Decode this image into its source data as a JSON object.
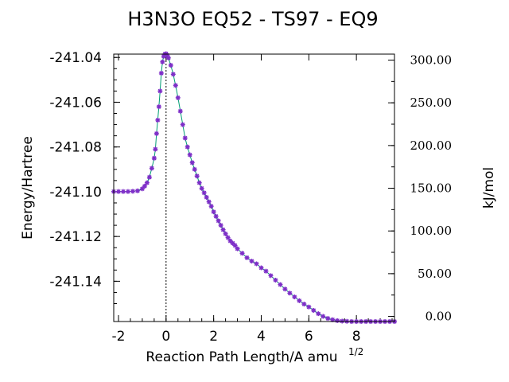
{
  "chart_data": {
    "type": "line",
    "title": "H3N3O   EQ52 - TS97 - EQ9",
    "xlabel": "Reaction Path Length/A amu",
    "xlabel_superscript": "1/2",
    "ylabel_left": "Energy/Hartree",
    "ylabel_right": "kJ/mol",
    "xlim": [
      -2.2,
      9.6
    ],
    "ylim": [
      -241.158,
      -241.0385
    ],
    "right_ylim": [
      -6.0,
      307.0
    ],
    "x_ticks": [
      -2,
      0,
      2,
      4,
      6,
      8
    ],
    "x_tick_labels": [
      "-2",
      "0",
      "2",
      "4",
      "6",
      "8"
    ],
    "y_ticks": [
      -241.04,
      -241.06,
      -241.08,
      -241.1,
      -241.12,
      -241.14
    ],
    "y_tick_labels": [
      "-241.04",
      "-241.06",
      "-241.08",
      "-241.10",
      "-241.12",
      "-241.14"
    ],
    "right_ticks": [
      300,
      250,
      200,
      150,
      100,
      50,
      0
    ],
    "right_tick_labels": [
      "300.00",
      "250.00",
      "200.00",
      "150.00",
      "100.00",
      "50.00",
      "0.00"
    ],
    "ts_marker_x": 0,
    "colors": {
      "curve": "#009e73",
      "points": "#7e2fc8",
      "frame": "#000000",
      "marker": "#000000"
    },
    "series": [
      {
        "points": [
          [
            -2.2,
            -241.0999
          ],
          [
            -2.0,
            -241.0999
          ],
          [
            -1.8,
            -241.0999
          ],
          [
            -1.6,
            -241.0999
          ],
          [
            -1.4,
            -241.0998
          ],
          [
            -1.2,
            -241.0996
          ],
          [
            -1.0,
            -241.0987
          ],
          [
            -0.9,
            -241.0975
          ],
          [
            -0.8,
            -241.096
          ],
          [
            -0.7,
            -241.0935
          ],
          [
            -0.6,
            -241.0895
          ],
          [
            -0.5,
            -241.085
          ],
          [
            -0.45,
            -241.081
          ],
          [
            -0.4,
            -241.074
          ],
          [
            -0.35,
            -241.068
          ],
          [
            -0.3,
            -241.062
          ],
          [
            -0.25,
            -241.055
          ],
          [
            -0.2,
            -241.047
          ],
          [
            -0.15,
            -241.042
          ],
          [
            -0.1,
            -241.0395
          ],
          [
            -0.05,
            -241.0385
          ],
          [
            0.0,
            -241.0383
          ],
          [
            0.05,
            -241.039
          ],
          [
            0.1,
            -241.0402
          ],
          [
            0.2,
            -241.0435
          ],
          [
            0.3,
            -241.0475
          ],
          [
            0.4,
            -241.0525
          ],
          [
            0.5,
            -241.058
          ],
          [
            0.6,
            -241.064
          ],
          [
            0.7,
            -241.07
          ],
          [
            0.8,
            -241.076
          ],
          [
            0.9,
            -241.08
          ],
          [
            1.0,
            -241.0835
          ],
          [
            1.1,
            -241.087
          ],
          [
            1.2,
            -241.09
          ],
          [
            1.3,
            -241.093
          ],
          [
            1.4,
            -241.096
          ],
          [
            1.5,
            -241.0985
          ],
          [
            1.6,
            -241.1005
          ],
          [
            1.7,
            -241.1025
          ],
          [
            1.8,
            -241.1045
          ],
          [
            1.9,
            -241.1065
          ],
          [
            2.0,
            -241.109
          ],
          [
            2.1,
            -241.111
          ],
          [
            2.2,
            -241.113
          ],
          [
            2.3,
            -241.115
          ],
          [
            2.4,
            -241.117
          ],
          [
            2.5,
            -241.1188
          ],
          [
            2.6,
            -241.1205
          ],
          [
            2.7,
            -241.122
          ],
          [
            2.8,
            -241.123
          ],
          [
            2.9,
            -241.124
          ],
          [
            3.0,
            -241.1255
          ],
          [
            3.2,
            -241.1275
          ],
          [
            3.4,
            -241.1295
          ],
          [
            3.6,
            -241.131
          ],
          [
            3.8,
            -241.1322
          ],
          [
            4.0,
            -241.134
          ],
          [
            4.2,
            -241.1355
          ],
          [
            4.4,
            -241.1375
          ],
          [
            4.6,
            -241.1395
          ],
          [
            4.8,
            -241.1415
          ],
          [
            5.0,
            -241.1435
          ],
          [
            5.2,
            -241.1453
          ],
          [
            5.4,
            -241.147
          ],
          [
            5.6,
            -241.1487
          ],
          [
            5.8,
            -241.1502
          ],
          [
            6.0,
            -241.1515
          ],
          [
            6.2,
            -241.153
          ],
          [
            6.4,
            -241.1545
          ],
          [
            6.6,
            -241.1557
          ],
          [
            6.8,
            -241.1566
          ],
          [
            7.0,
            -241.1572
          ],
          [
            7.2,
            -241.1576
          ],
          [
            7.4,
            -241.1578
          ],
          [
            7.6,
            -241.1579
          ],
          [
            7.8,
            -241.158
          ],
          [
            8.0,
            -241.158
          ],
          [
            8.2,
            -241.158
          ],
          [
            8.4,
            -241.158
          ],
          [
            8.6,
            -241.158
          ],
          [
            8.8,
            -241.158
          ],
          [
            9.0,
            -241.158
          ],
          [
            9.2,
            -241.158
          ],
          [
            9.4,
            -241.158
          ],
          [
            9.6,
            -241.158
          ]
        ]
      }
    ]
  }
}
